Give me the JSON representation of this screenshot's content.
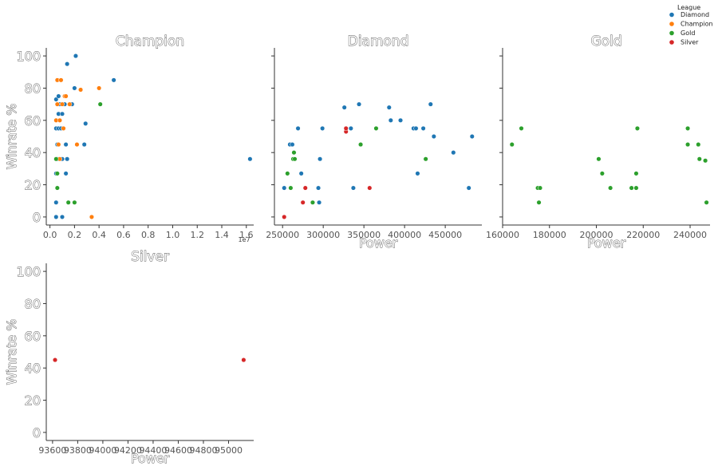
{
  "legend": {
    "title": "League",
    "entries": [
      {
        "label": "Diamond",
        "color": "#1f77b4"
      },
      {
        "label": "Champion",
        "color": "#ff7f0e"
      },
      {
        "label": "Gold",
        "color": "#2ca02c"
      },
      {
        "label": "Silver",
        "color": "#d62728"
      }
    ]
  },
  "chart_data": [
    {
      "type": "scatter",
      "title": "Champion",
      "xlabel": "",
      "ylabel": "Winrate %",
      "xlim": [
        -300000,
        16600000
      ],
      "ylim": [
        -5,
        105
      ],
      "x_ticks": [
        0,
        2000000,
        4000000,
        6000000,
        8000000,
        10000000,
        12000000,
        14000000,
        16000000
      ],
      "x_tick_labels": [
        "0.0",
        "0.2",
        "0.4",
        "0.6",
        "0.8",
        "1.0",
        "1.2",
        "1.4",
        "1.6"
      ],
      "x_offset_label": "1e7",
      "y_ticks": [
        0,
        20,
        40,
        60,
        80,
        100
      ],
      "y_tick_labels": [
        "0",
        "20",
        "40",
        "60",
        "80",
        "100"
      ],
      "series": [
        {
          "name": "Diamond",
          "color": "#1f77b4",
          "points": [
            [
              500000,
              0
            ],
            [
              500000,
              9
            ],
            [
              500000,
              27
            ],
            [
              500000,
              55
            ],
            [
              500000,
              73
            ],
            [
              600000,
              36
            ],
            [
              600000,
              45
            ],
            [
              700000,
              55
            ],
            [
              700000,
              64
            ],
            [
              700000,
              75
            ],
            [
              800000,
              70
            ],
            [
              900000,
              36
            ],
            [
              900000,
              55
            ],
            [
              1000000,
              0
            ],
            [
              1000000,
              36
            ],
            [
              1000000,
              64
            ],
            [
              1100000,
              55
            ],
            [
              1200000,
              70
            ],
            [
              1300000,
              27
            ],
            [
              1300000,
              45
            ],
            [
              1400000,
              36
            ],
            [
              1400000,
              95
            ],
            [
              1800000,
              70
            ],
            [
              2000000,
              80
            ],
            [
              2100000,
              100
            ],
            [
              2800000,
              45
            ],
            [
              2900000,
              58
            ],
            [
              5200000,
              85
            ],
            [
              16300000,
              36
            ]
          ]
        },
        {
          "name": "Champion",
          "color": "#ff7f0e",
          "points": [
            [
              500000,
              60
            ],
            [
              600000,
              85
            ],
            [
              600000,
              70
            ],
            [
              700000,
              45
            ],
            [
              800000,
              36
            ],
            [
              800000,
              60
            ],
            [
              900000,
              85
            ],
            [
              1000000,
              70
            ],
            [
              1100000,
              55
            ],
            [
              1200000,
              75
            ],
            [
              1300000,
              75
            ],
            [
              1600000,
              70
            ],
            [
              2200000,
              45
            ],
            [
              2500000,
              79
            ],
            [
              3400000,
              0
            ],
            [
              4000000,
              80
            ]
          ]
        },
        {
          "name": "Gold",
          "color": "#2ca02c",
          "points": [
            [
              500000,
              36
            ],
            [
              600000,
              18
            ],
            [
              600000,
              27
            ],
            [
              1500000,
              9
            ],
            [
              2000000,
              9
            ],
            [
              4100000,
              70
            ]
          ]
        }
      ]
    },
    {
      "type": "scatter",
      "title": "Diamond",
      "xlabel": "Power",
      "ylabel": "",
      "xlim": [
        240000,
        495000
      ],
      "ylim": [
        -5,
        105
      ],
      "x_ticks": [
        250000,
        300000,
        350000,
        400000,
        450000
      ],
      "x_tick_labels": [
        "250000",
        "300000",
        "350000",
        "400000",
        "450000"
      ],
      "series": [
        {
          "name": "Diamond",
          "color": "#1f77b4",
          "points": [
            [
              252000,
              18
            ],
            [
              259000,
              45
            ],
            [
              262000,
              45
            ],
            [
              269000,
              55
            ],
            [
              273000,
              27
            ],
            [
              294000,
              18
            ],
            [
              295000,
              9
            ],
            [
              296000,
              36
            ],
            [
              299000,
              55
            ],
            [
              326000,
              68
            ],
            [
              334000,
              55
            ],
            [
              337000,
              18
            ],
            [
              344000,
              70
            ],
            [
              381000,
              68
            ],
            [
              383000,
              60
            ],
            [
              395000,
              60
            ],
            [
              411000,
              55
            ],
            [
              414000,
              55
            ],
            [
              416000,
              27
            ],
            [
              423000,
              55
            ],
            [
              432000,
              70
            ],
            [
              436000,
              50
            ],
            [
              460000,
              40
            ],
            [
              479000,
              18
            ],
            [
              483000,
              50
            ]
          ]
        },
        {
          "name": "Gold",
          "color": "#2ca02c",
          "points": [
            [
              256000,
              27
            ],
            [
              260000,
              18
            ],
            [
              263000,
              36
            ],
            [
              265000,
              36
            ],
            [
              264000,
              40
            ],
            [
              287000,
              9
            ],
            [
              346000,
              45
            ],
            [
              365000,
              55
            ],
            [
              426000,
              36
            ]
          ]
        },
        {
          "name": "Silver",
          "color": "#d62728",
          "points": [
            [
              252000,
              0
            ],
            [
              275000,
              9
            ],
            [
              278000,
              18
            ],
            [
              328000,
              53
            ],
            [
              328000,
              55
            ],
            [
              357000,
              18
            ]
          ]
        }
      ]
    },
    {
      "type": "scatter",
      "title": "Gold",
      "xlabel": "Power",
      "ylabel": "",
      "xlim": [
        160000,
        248500
      ],
      "ylim": [
        -5,
        105
      ],
      "x_ticks": [
        160000,
        180000,
        200000,
        220000,
        240000
      ],
      "x_tick_labels": [
        "160000",
        "180000",
        "200000",
        "220000",
        "240000"
      ],
      "series": [
        {
          "name": "Gold",
          "color": "#2ca02c",
          "points": [
            [
              164000,
              45
            ],
            [
              168000,
              55
            ],
            [
              175000,
              18
            ],
            [
              175500,
              9
            ],
            [
              176000,
              18
            ],
            [
              201000,
              36
            ],
            [
              202500,
              27
            ],
            [
              206000,
              18
            ],
            [
              215000,
              18
            ],
            [
              217000,
              18
            ],
            [
              217000,
              27
            ],
            [
              217500,
              55
            ],
            [
              239000,
              55
            ],
            [
              239000,
              45
            ],
            [
              243500,
              45
            ],
            [
              244000,
              36
            ],
            [
              246500,
              35
            ],
            [
              247000,
              9
            ]
          ]
        }
      ]
    },
    {
      "type": "scatter",
      "title": "Silver",
      "xlabel": "Power",
      "ylabel": "Winrate %",
      "xlim": [
        93550,
        95200
      ],
      "ylim": [
        -5,
        105
      ],
      "x_ticks": [
        93600,
        93800,
        94000,
        94200,
        94400,
        94600,
        94800,
        95000
      ],
      "x_tick_labels": [
        "93600",
        "93800",
        "94000",
        "94200",
        "94400",
        "94600",
        "94800",
        "95000"
      ],
      "y_ticks": [
        0,
        20,
        40,
        60,
        80,
        100
      ],
      "y_tick_labels": [
        "0",
        "20",
        "40",
        "60",
        "80",
        "100"
      ],
      "series": [
        {
          "name": "Silver",
          "color": "#d62728",
          "points": [
            [
              93620,
              45
            ],
            [
              95120,
              45
            ]
          ]
        }
      ]
    }
  ]
}
